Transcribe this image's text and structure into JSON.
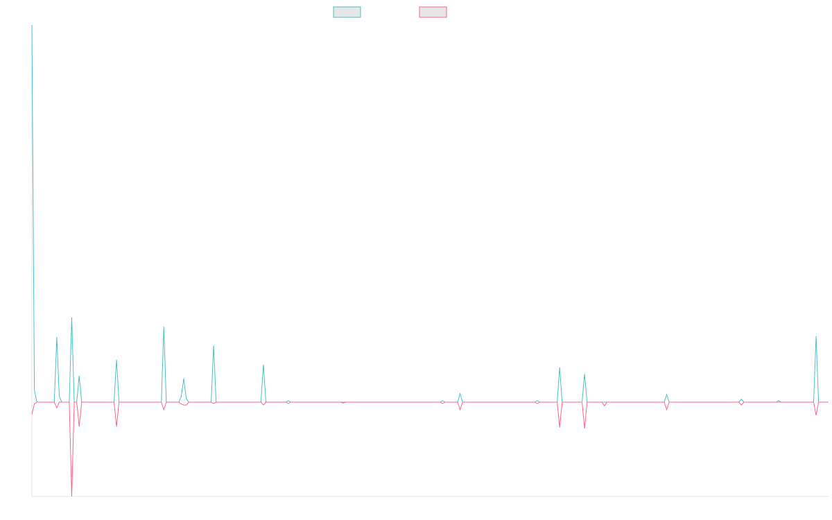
{
  "chart_data": {
    "type": "line",
    "title": "",
    "xlabel": "",
    "ylabel": "",
    "grid": false,
    "legend_placement": "top-center",
    "x_count": 320,
    "ylim": [
      -1.0,
      4.0
    ],
    "series": [
      {
        "color": "#4bc0c0",
        "points": [
          [
            0,
            4.0
          ],
          [
            1,
            0.13
          ],
          [
            2,
            0.0
          ],
          [
            9,
            0.0
          ],
          [
            10,
            0.69
          ],
          [
            11,
            0.06
          ],
          [
            12,
            0.0
          ],
          [
            15,
            0.0
          ],
          [
            16,
            0.9
          ],
          [
            17,
            0.0
          ],
          [
            18,
            0.0
          ],
          [
            19,
            0.28
          ],
          [
            20,
            0.0
          ],
          [
            33,
            0.0
          ],
          [
            34,
            0.45
          ],
          [
            35,
            0.0
          ],
          [
            52,
            0.0
          ],
          [
            53,
            0.8
          ],
          [
            54,
            0.0
          ],
          [
            59,
            0.0
          ],
          [
            60,
            0.06
          ],
          [
            61,
            0.25
          ],
          [
            62,
            0.04
          ],
          [
            63,
            0.0
          ],
          [
            72,
            0.0
          ],
          [
            73,
            0.6
          ],
          [
            74,
            0.0
          ],
          [
            92,
            0.0
          ],
          [
            93,
            0.4
          ],
          [
            94,
            0.0
          ],
          [
            102,
            0.0
          ],
          [
            103,
            0.015
          ],
          [
            104,
            0.0
          ],
          [
            164,
            0.0
          ],
          [
            165,
            0.015
          ],
          [
            166,
            0.0
          ],
          [
            171,
            0.0
          ],
          [
            172,
            0.09
          ],
          [
            173,
            0.0
          ],
          [
            202,
            0.0
          ],
          [
            203,
            0.015
          ],
          [
            204,
            0.0
          ],
          [
            211,
            0.0
          ],
          [
            212,
            0.37
          ],
          [
            213,
            0.0
          ],
          [
            221,
            0.0
          ],
          [
            222,
            0.3
          ],
          [
            223,
            0.0
          ],
          [
            254,
            0.0
          ],
          [
            255,
            0.08
          ],
          [
            256,
            0.0
          ],
          [
            284,
            0.0
          ],
          [
            285,
            0.03
          ],
          [
            286,
            0.0
          ],
          [
            299,
            0.0
          ],
          [
            300,
            0.015
          ],
          [
            301,
            0.0
          ],
          [
            314,
            0.0
          ],
          [
            315,
            0.7
          ],
          [
            316,
            0.0
          ],
          [
            320,
            0.0
          ]
        ]
      },
      {
        "color": "#ff6384",
        "points": [
          [
            0,
            -0.13
          ],
          [
            1,
            -0.02
          ],
          [
            2,
            0.0
          ],
          [
            9,
            0.0
          ],
          [
            10,
            -0.06
          ],
          [
            11,
            0.0
          ],
          [
            15,
            0.0
          ],
          [
            16,
            -1.0
          ],
          [
            17,
            0.0
          ],
          [
            18,
            0.0
          ],
          [
            19,
            -0.26
          ],
          [
            20,
            0.0
          ],
          [
            33,
            0.0
          ],
          [
            34,
            -0.26
          ],
          [
            35,
            0.0
          ],
          [
            52,
            0.0
          ],
          [
            53,
            -0.08
          ],
          [
            54,
            0.0
          ],
          [
            59,
            0.0
          ],
          [
            60,
            -0.02
          ],
          [
            61,
            -0.03
          ],
          [
            62,
            -0.03
          ],
          [
            63,
            0.0
          ],
          [
            72,
            0.0
          ],
          [
            73,
            -0.015
          ],
          [
            74,
            0.0
          ],
          [
            92,
            0.0
          ],
          [
            93,
            -0.03
          ],
          [
            94,
            0.0
          ],
          [
            102,
            0.0
          ],
          [
            103,
            -0.015
          ],
          [
            104,
            0.0
          ],
          [
            124,
            0.0
          ],
          [
            125,
            -0.01
          ],
          [
            126,
            0.0
          ],
          [
            164,
            0.0
          ],
          [
            165,
            -0.015
          ],
          [
            166,
            0.0
          ],
          [
            171,
            0.0
          ],
          [
            172,
            -0.08
          ],
          [
            173,
            0.0
          ],
          [
            202,
            0.0
          ],
          [
            203,
            -0.015
          ],
          [
            204,
            0.0
          ],
          [
            211,
            0.0
          ],
          [
            212,
            -0.27
          ],
          [
            213,
            0.0
          ],
          [
            221,
            0.0
          ],
          [
            222,
            -0.28
          ],
          [
            223,
            0.0
          ],
          [
            229,
            0.0
          ],
          [
            230,
            -0.04
          ],
          [
            231,
            0.0
          ],
          [
            254,
            0.0
          ],
          [
            255,
            -0.08
          ],
          [
            256,
            0.0
          ],
          [
            284,
            0.0
          ],
          [
            285,
            -0.03
          ],
          [
            286,
            0.0
          ],
          [
            314,
            0.0
          ],
          [
            315,
            -0.14
          ],
          [
            316,
            0.0
          ],
          [
            320,
            0.0
          ]
        ]
      }
    ]
  }
}
